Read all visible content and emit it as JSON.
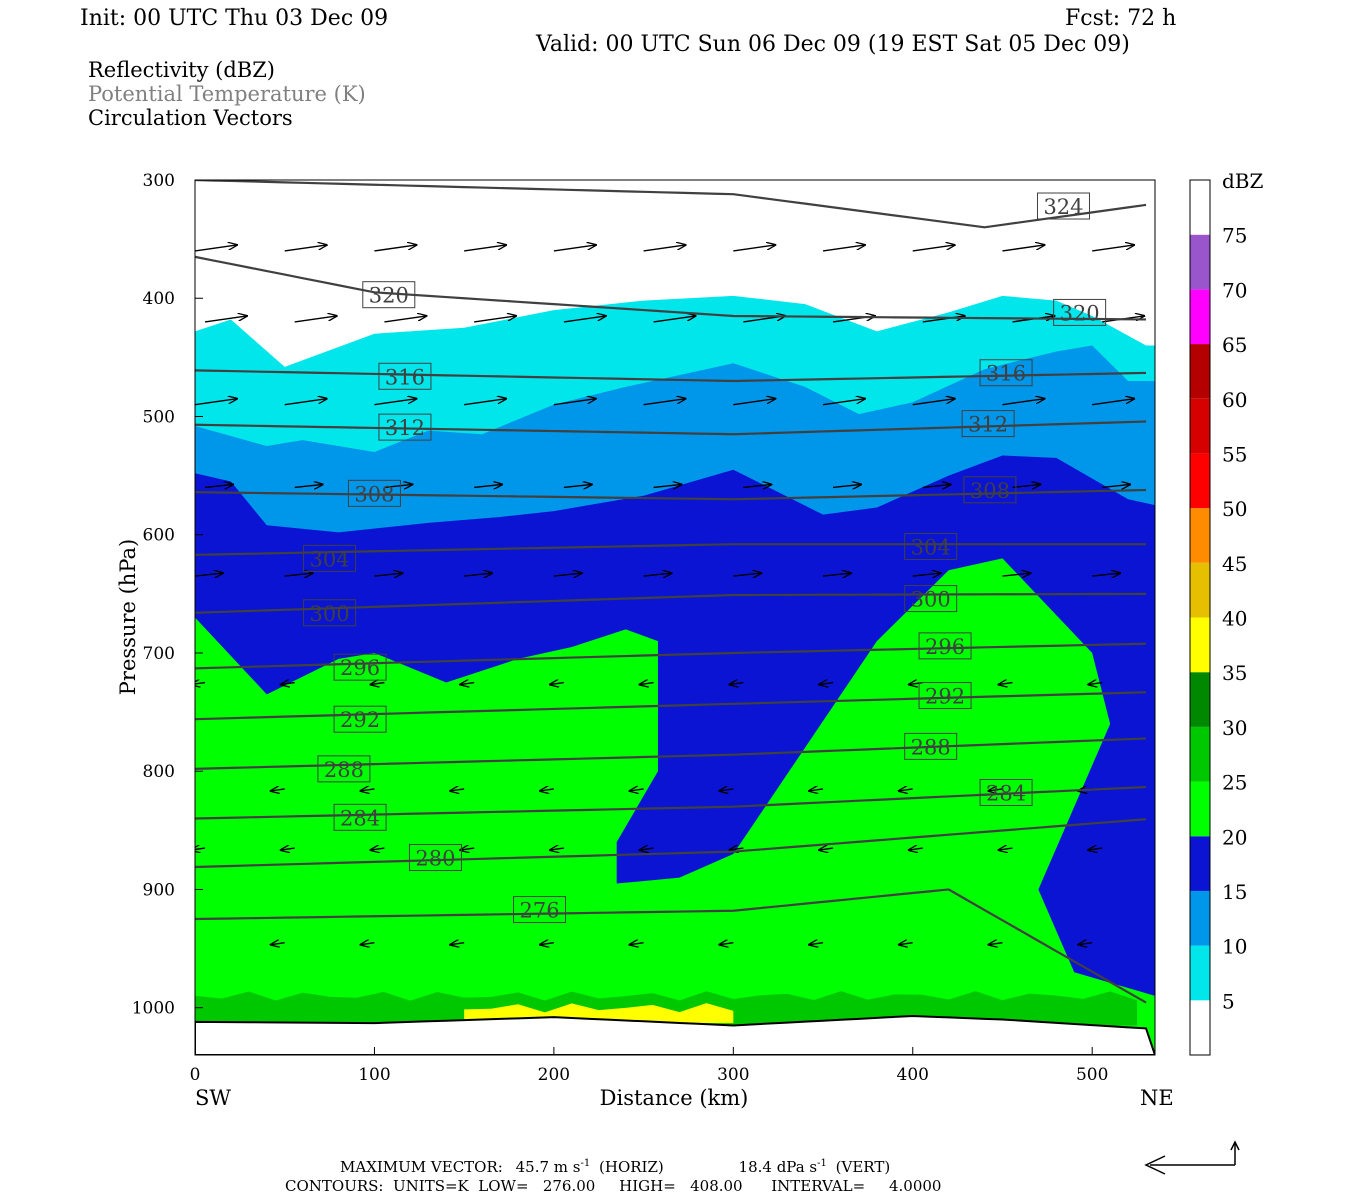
{
  "header": {
    "init": "Init: 00 UTC Thu 03 Dec 09",
    "fcst": "Fcst:   72 h",
    "valid": "Valid: 00 UTC Sun 06 Dec 09 (19 EST Sat 05 Dec 09)",
    "field1": "Reflectivity (dBZ)",
    "field2": "Potential Temperature (K)",
    "field3": "Circulation Vectors"
  },
  "axes": {
    "xlabel": "Distance (km)",
    "ylabel": "Pressure (hPa)",
    "x_left_end": "SW",
    "x_right_end": "NE"
  },
  "colorbar": {
    "title": "dBZ",
    "levels": [
      "5",
      "10",
      "15",
      "20",
      "25",
      "30",
      "35",
      "40",
      "45",
      "50",
      "55",
      "60",
      "65",
      "70",
      "75"
    ],
    "colors": [
      "#ffffff",
      "#00e6eb",
      "#0096ea",
      "#0a14d2",
      "#00ff00",
      "#00c800",
      "#008800",
      "#ffff00",
      "#e6bf00",
      "#ff8c00",
      "#ff0000",
      "#d60000",
      "#b40000",
      "#ff00ff",
      "#9955cc"
    ]
  },
  "footer": {
    "max_vector_label": "MAXIMUM VECTOR:",
    "horiz_value": "45.7 m s",
    "horiz_sup": "-1",
    "horiz_unit": "(HORIZ)",
    "vert_value": "18.4 dPa s",
    "vert_sup": "-1",
    "vert_unit": "(VERT)",
    "contours_line": "CONTOURS:  UNITS=K  LOW=   276.00     HIGH=   408.00      INTERVAL=     4.0000"
  },
  "chart_data": {
    "type": "area",
    "xlim": [
      0,
      535
    ],
    "ylim": [
      1040,
      300
    ],
    "xticks": [
      0,
      100,
      200,
      300,
      400,
      500
    ],
    "yticks": [
      300,
      400,
      500,
      600,
      700,
      800,
      900,
      1000
    ],
    "reflectivity_regions": [
      {
        "dbz": 5,
        "top": [
          [
            0,
            428
          ],
          [
            20,
            418
          ],
          [
            50,
            458
          ],
          [
            100,
            430
          ],
          [
            150,
            425
          ],
          [
            200,
            410
          ],
          [
            250,
            402
          ],
          [
            300,
            398
          ],
          [
            340,
            405
          ],
          [
            380,
            428
          ],
          [
            420,
            412
          ],
          [
            450,
            398
          ],
          [
            480,
            402
          ],
          [
            500,
            415
          ],
          [
            530,
            440
          ],
          [
            535,
            440
          ]
        ]
      },
      {
        "dbz": 10,
        "top": [
          [
            0,
            508
          ],
          [
            40,
            525
          ],
          [
            60,
            520
          ],
          [
            100,
            530
          ],
          [
            130,
            512
          ],
          [
            160,
            515
          ],
          [
            200,
            490
          ],
          [
            240,
            475
          ],
          [
            300,
            455
          ],
          [
            340,
            475
          ],
          [
            370,
            498
          ],
          [
            400,
            488
          ],
          [
            440,
            460
          ],
          [
            480,
            445
          ],
          [
            500,
            440
          ],
          [
            520,
            470
          ],
          [
            535,
            470
          ]
        ]
      },
      {
        "dbz": 15,
        "top": [
          [
            0,
            548
          ],
          [
            20,
            555
          ],
          [
            40,
            592
          ],
          [
            80,
            598
          ],
          [
            130,
            590
          ],
          [
            170,
            585
          ],
          [
            200,
            580
          ],
          [
            250,
            567
          ],
          [
            300,
            545
          ],
          [
            350,
            583
          ],
          [
            380,
            577
          ],
          [
            420,
            550
          ],
          [
            450,
            533
          ],
          [
            480,
            535
          ],
          [
            520,
            570
          ],
          [
            535,
            575
          ]
        ]
      },
      {
        "dbz": 20,
        "region": "lower-left",
        "top": [
          [
            0,
            670
          ],
          [
            40,
            735
          ],
          [
            80,
            705
          ],
          [
            100,
            700
          ],
          [
            140,
            725
          ],
          [
            180,
            705
          ],
          [
            210,
            695
          ],
          [
            240,
            680
          ],
          [
            258,
            690
          ],
          [
            258,
            800
          ],
          [
            235,
            860
          ],
          [
            235,
            895
          ],
          [
            270,
            890
          ],
          [
            300,
            870
          ],
          [
            340,
            780
          ],
          [
            380,
            690
          ],
          [
            420,
            630
          ],
          [
            450,
            620
          ],
          [
            500,
            700
          ],
          [
            510,
            760
          ],
          [
            470,
            900
          ],
          [
            490,
            970
          ],
          [
            535,
            990
          ]
        ]
      },
      {
        "dbz": 25,
        "band": "near-surface",
        "range": [
          0,
          535
        ],
        "p": [
          990,
          1015
        ]
      },
      {
        "dbz": 35,
        "band": "near-surface",
        "range": [
          150,
          300
        ],
        "p": [
          1000,
          1013
        ]
      }
    ],
    "theta_contours": [
      {
        "k": 324,
        "p_at_x": [
          [
            0,
            300
          ],
          [
            300,
            312
          ],
          [
            440,
            340
          ],
          [
            535,
            320
          ]
        ]
      },
      {
        "k": 320,
        "p_at_x": [
          [
            0,
            365
          ],
          [
            100,
            395
          ],
          [
            300,
            415
          ],
          [
            535,
            418
          ]
        ]
      },
      {
        "k": 316,
        "p_at_x": [
          [
            0,
            461
          ],
          [
            300,
            470
          ],
          [
            535,
            463
          ]
        ]
      },
      {
        "k": 312,
        "p_at_x": [
          [
            0,
            507
          ],
          [
            300,
            515
          ],
          [
            535,
            504
          ]
        ]
      },
      {
        "k": 308,
        "p_at_x": [
          [
            0,
            564
          ],
          [
            300,
            570
          ],
          [
            535,
            562
          ]
        ]
      },
      {
        "k": 304,
        "p_at_x": [
          [
            0,
            617
          ],
          [
            300,
            608
          ],
          [
            535,
            608
          ]
        ]
      },
      {
        "k": 300,
        "p_at_x": [
          [
            0,
            666
          ],
          [
            300,
            651
          ],
          [
            535,
            650
          ]
        ]
      },
      {
        "k": 296,
        "p_at_x": [
          [
            0,
            713
          ],
          [
            300,
            700
          ],
          [
            535,
            692
          ]
        ]
      },
      {
        "k": 292,
        "p_at_x": [
          [
            0,
            756
          ],
          [
            300,
            743
          ],
          [
            535,
            733
          ]
        ]
      },
      {
        "k": 288,
        "p_at_x": [
          [
            0,
            798
          ],
          [
            300,
            786
          ],
          [
            535,
            772
          ]
        ]
      },
      {
        "k": 284,
        "p_at_x": [
          [
            0,
            840
          ],
          [
            300,
            830
          ],
          [
            535,
            813
          ]
        ]
      },
      {
        "k": 280,
        "p_at_x": [
          [
            0,
            881
          ],
          [
            300,
            868
          ],
          [
            535,
            840
          ]
        ]
      },
      {
        "k": 276,
        "p_at_x": [
          [
            0,
            925
          ],
          [
            300,
            918
          ],
          [
            420,
            900
          ],
          [
            535,
            1000
          ]
        ]
      }
    ],
    "contour_labels": [
      {
        "text": "324",
        "x": 484,
        "p": 322
      },
      {
        "text": "320",
        "x": 108,
        "p": 397
      },
      {
        "text": "320",
        "x": 493,
        "p": 412
      },
      {
        "text": "316",
        "x": 117,
        "p": 466
      },
      {
        "text": "316",
        "x": 452,
        "p": 463
      },
      {
        "text": "312",
        "x": 117,
        "p": 509
      },
      {
        "text": "312",
        "x": 442,
        "p": 506
      },
      {
        "text": "308",
        "x": 100,
        "p": 565
      },
      {
        "text": "308",
        "x": 443,
        "p": 562
      },
      {
        "text": "304",
        "x": 75,
        "p": 620
      },
      {
        "text": "304",
        "x": 410,
        "p": 610
      },
      {
        "text": "300",
        "x": 75,
        "p": 666
      },
      {
        "text": "300",
        "x": 410,
        "p": 654
      },
      {
        "text": "296",
        "x": 92,
        "p": 712
      },
      {
        "text": "296",
        "x": 418,
        "p": 694
      },
      {
        "text": "292",
        "x": 92,
        "p": 756
      },
      {
        "text": "292",
        "x": 418,
        "p": 736
      },
      {
        "text": "288",
        "x": 83,
        "p": 798
      },
      {
        "text": "288",
        "x": 410,
        "p": 779
      },
      {
        "text": "284",
        "x": 92,
        "p": 839
      },
      {
        "text": "284",
        "x": 452,
        "p": 818
      },
      {
        "text": "280",
        "x": 134,
        "p": 873
      },
      {
        "text": "276",
        "x": 192,
        "p": 917
      }
    ],
    "surface_p": [
      [
        0,
        1012
      ],
      [
        100,
        1013
      ],
      [
        200,
        1008
      ],
      [
        300,
        1015
      ],
      [
        400,
        1007
      ],
      [
        450,
        1010
      ],
      [
        535,
        1018
      ]
    ]
  }
}
